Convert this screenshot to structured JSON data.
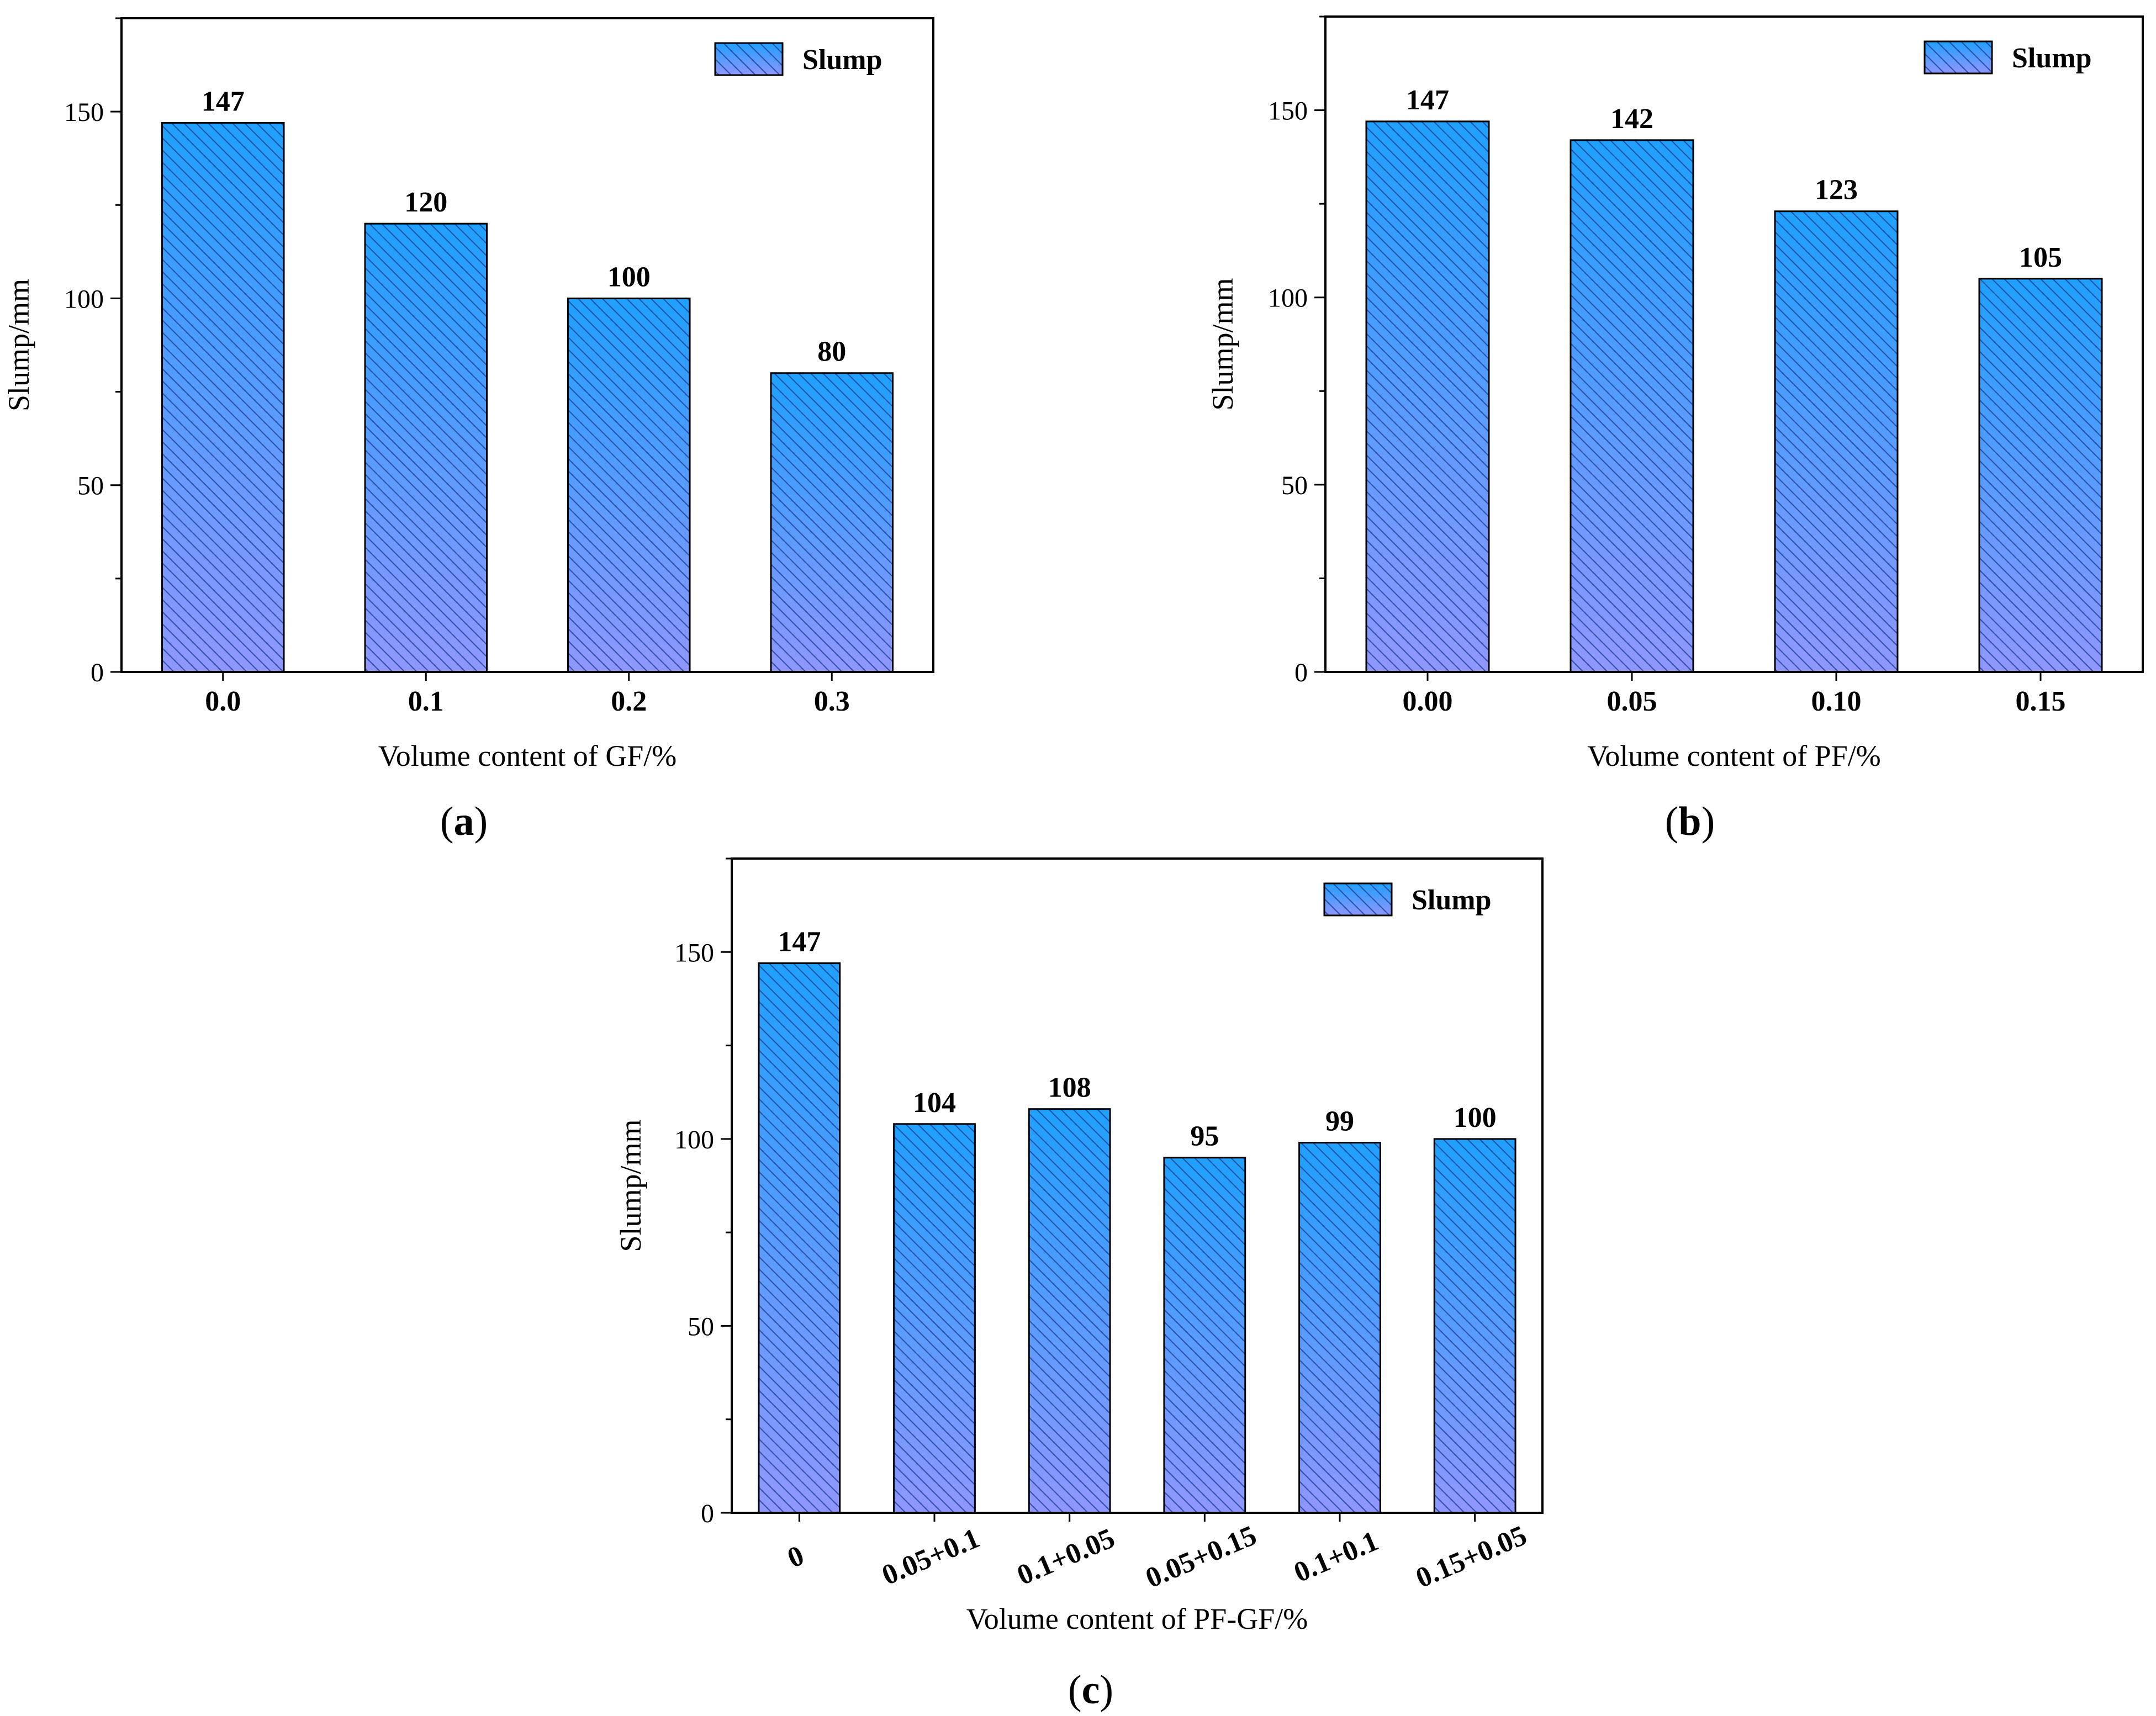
{
  "colors": {
    "bar_top": "#1fa0ff",
    "bar_bottom": "#8f97ff",
    "hatch": "#1c3d8a",
    "axis": "#000000"
  },
  "chart_data": [
    {
      "id": "a",
      "type": "bar",
      "panel_label": "a",
      "categories": [
        "0.0",
        "0.1",
        "0.2",
        "0.3"
      ],
      "series": [
        {
          "name": "Slump",
          "values": [
            147,
            120,
            100,
            80
          ]
        }
      ],
      "data_labels": [
        "147",
        "120",
        "100",
        "80"
      ],
      "xlabel": "Volume content of GF/%",
      "ylabel": "Slump/mm",
      "ylim": [
        0,
        175
      ],
      "yticks": [
        0,
        50,
        100,
        150
      ],
      "legend": {
        "position": "top-right",
        "label": "Slump"
      },
      "grid": false
    },
    {
      "id": "b",
      "type": "bar",
      "panel_label": "b",
      "categories": [
        "0.00",
        "0.05",
        "0.10",
        "0.15"
      ],
      "series": [
        {
          "name": "Slump",
          "values": [
            147,
            142,
            123,
            105
          ]
        }
      ],
      "data_labels": [
        "147",
        "142",
        "123",
        "105"
      ],
      "xlabel": "Volume content of PF/%",
      "ylabel": "Slump/mm",
      "ylim": [
        0,
        175
      ],
      "yticks": [
        0,
        50,
        100,
        150
      ],
      "legend": {
        "position": "top-right",
        "label": "Slump"
      },
      "grid": false
    },
    {
      "id": "c",
      "type": "bar",
      "panel_label": "c",
      "categories": [
        "0",
        "0.05+0.1",
        "0.1+0.05",
        "0.05+0.15",
        "0.1+0.1",
        "0.15+0.05"
      ],
      "series": [
        {
          "name": "Slump",
          "values": [
            147,
            104,
            108,
            95,
            99,
            100
          ]
        }
      ],
      "data_labels": [
        "147",
        "104",
        "108",
        "95",
        "99",
        "100"
      ],
      "xlabel": "Volume content of PF-GF/%",
      "ylabel": "Slump/mm",
      "ylim": [
        0,
        175
      ],
      "yticks": [
        0,
        50,
        100,
        150
      ],
      "legend": {
        "position": "top-right",
        "label": "Slump"
      },
      "grid": false
    }
  ]
}
